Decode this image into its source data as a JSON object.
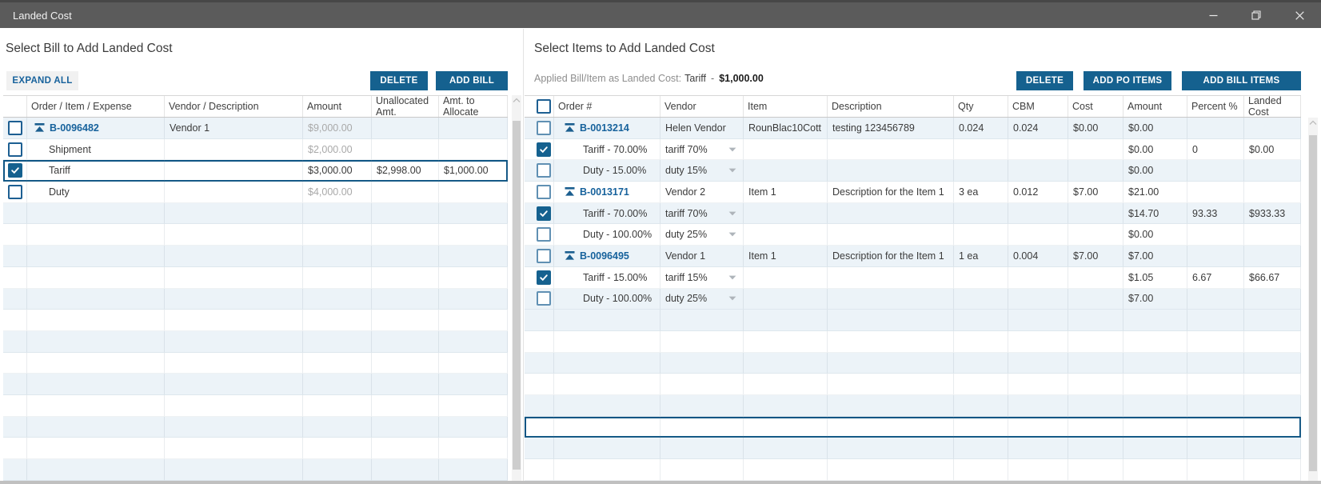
{
  "window": {
    "title": "Landed Cost"
  },
  "bill_panel": {
    "heading": "Select Bill to Add Landed Cost",
    "expand_all": "EXPAND ALL",
    "delete": "DELETE",
    "add_bill": "ADD BILL",
    "columns": [
      "",
      "Order / Item / Expense",
      "Vendor / Description",
      "Amount",
      "Unallocated Amt.",
      "Amt. to Allocate"
    ],
    "rows": [
      {
        "level": "parent",
        "checked": false,
        "selected": false,
        "muted": true,
        "cells": {
          "label": "B-0096482",
          "vendor": "Vendor 1",
          "amount": "$9,000.00",
          "unallocated": "",
          "allocate": ""
        }
      },
      {
        "level": "child",
        "checked": false,
        "selected": false,
        "muted": true,
        "cells": {
          "label": "Shipment",
          "vendor": "",
          "amount": "$2,000.00",
          "unallocated": "",
          "allocate": ""
        }
      },
      {
        "level": "child",
        "checked": true,
        "selected": true,
        "muted": false,
        "cells": {
          "label": "Tariff",
          "vendor": "",
          "amount": "$3,000.00",
          "unallocated": "$2,998.00",
          "allocate": "$1,000.00"
        }
      },
      {
        "level": "child",
        "checked": false,
        "selected": false,
        "muted": true,
        "cells": {
          "label": "Duty",
          "vendor": "",
          "amount": "$4,000.00",
          "unallocated": "",
          "allocate": ""
        }
      }
    ]
  },
  "items_panel": {
    "heading": "Select Items to Add Landed Cost",
    "applied_label": "Applied Bill/Item as Landed Cost:",
    "applied_item": "Tariff",
    "applied_separator": "-",
    "applied_amount": "$1,000.00",
    "delete": "DELETE",
    "add_po_items": "ADD PO ITEMS",
    "add_bill_items": "ADD BILL ITEMS",
    "columns": [
      "",
      "Order #",
      "Vendor",
      "Item",
      "Description",
      "Qty",
      "CBM",
      "Cost",
      "Amount",
      "Percent %",
      "Landed Cost"
    ],
    "selected_empty_row": 15,
    "rows": [
      {
        "level": "parent",
        "checked": false,
        "cells": {
          "order": "B-0013214",
          "vendor": "Helen Vendor",
          "item": "RounBlac10Cott",
          "description": "testing 123456789",
          "qty": "0.024",
          "cbm": "0.024",
          "cost": "$0.00",
          "amount": "$0.00",
          "percent": "",
          "landed": ""
        }
      },
      {
        "level": "child",
        "checked": true,
        "combo": true,
        "cells": {
          "order": "Tariff - 70.00%",
          "vendor": "tariff 70%",
          "item": "",
          "description": "",
          "qty": "",
          "cbm": "",
          "cost": "",
          "amount": "$0.00",
          "percent": "0",
          "landed": "$0.00"
        }
      },
      {
        "level": "child",
        "checked": false,
        "combo": true,
        "cells": {
          "order": "Duty - 15.00%",
          "vendor": "duty 15%",
          "item": "",
          "description": "",
          "qty": "",
          "cbm": "",
          "cost": "",
          "amount": "$0.00",
          "percent": "",
          "landed": ""
        }
      },
      {
        "level": "parent",
        "checked": false,
        "cells": {
          "order": "B-0013171",
          "vendor": "Vendor 2",
          "item": "Item 1",
          "description": "Description for the Item 1",
          "qty": "3 ea",
          "cbm": "0.012",
          "cost": "$7.00",
          "amount": "$21.00",
          "percent": "",
          "landed": ""
        }
      },
      {
        "level": "child",
        "checked": true,
        "combo": true,
        "cells": {
          "order": "Tariff - 70.00%",
          "vendor": "tariff 70%",
          "item": "",
          "description": "",
          "qty": "",
          "cbm": "",
          "cost": "",
          "amount": "$14.70",
          "percent": "93.33",
          "landed": "$933.33"
        }
      },
      {
        "level": "child",
        "checked": false,
        "combo": true,
        "cells": {
          "order": "Duty - 100.00%",
          "vendor": "duty 25%",
          "item": "",
          "description": "",
          "qty": "",
          "cbm": "",
          "cost": "",
          "amount": "$0.00",
          "percent": "",
          "landed": ""
        }
      },
      {
        "level": "parent",
        "checked": false,
        "cells": {
          "order": "B-0096495",
          "vendor": "Vendor 1",
          "item": "Item 1",
          "description": "Description for the Item 1",
          "qty": "1 ea",
          "cbm": "0.004",
          "cost": "$7.00",
          "amount": "$7.00",
          "percent": "",
          "landed": ""
        }
      },
      {
        "level": "child",
        "checked": true,
        "combo": true,
        "cells": {
          "order": "Tariff - 15.00%",
          "vendor": "tariff 15%",
          "item": "",
          "description": "",
          "qty": "",
          "cbm": "",
          "cost": "",
          "amount": "$1.05",
          "percent": "6.67",
          "landed": "$66.67"
        }
      },
      {
        "level": "child",
        "checked": false,
        "combo": true,
        "cells": {
          "order": "Duty - 100.00%",
          "vendor": "duty 25%",
          "item": "",
          "description": "",
          "qty": "",
          "cbm": "",
          "cost": "",
          "amount": "$7.00",
          "percent": "",
          "landed": ""
        }
      }
    ]
  },
  "colors": {
    "titlebar": "#5b5b5b",
    "accent_blue": "#15618f",
    "link_blue": "#17629c",
    "row_stripe": "#ecf3f8",
    "selection_border": "#0e5584",
    "muted_text": "#a9a9a9"
  }
}
